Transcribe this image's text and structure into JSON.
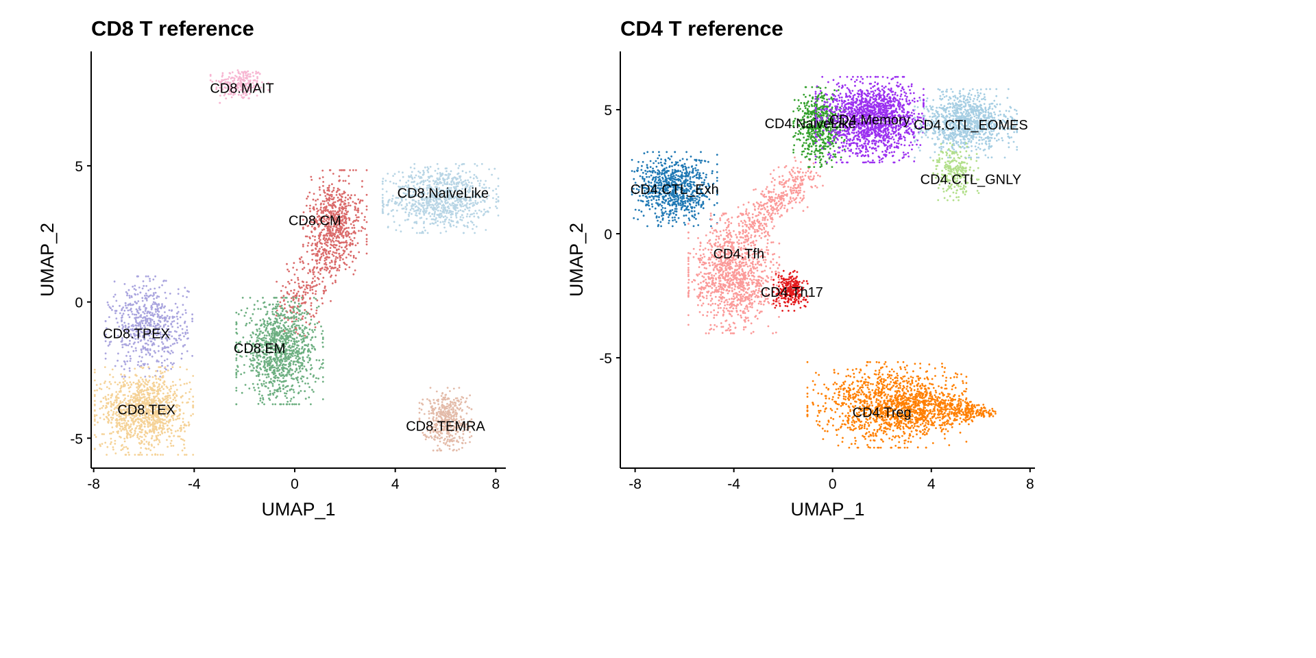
{
  "chart_data": [
    {
      "type": "scatter",
      "title": "CD8 T reference",
      "xlabel": "UMAP_1",
      "ylabel": "UMAP_2",
      "xlim": [
        -8.1,
        8.4
      ],
      "ylim": [
        -6.1,
        9.2
      ],
      "xticks": [
        -8,
        -4,
        0,
        4,
        8
      ],
      "yticks": [
        -5,
        0,
        5
      ],
      "grid": false,
      "legend": "none",
      "clusters": [
        {
          "label": "CD8.MAIT",
          "color": "#F7B6D2",
          "center": [
            -2.2,
            8.0
          ],
          "spread": [
            0.5,
            0.3
          ],
          "n": 220,
          "label_at": [
            -2.1,
            7.85
          ]
        },
        {
          "label": "CD8.NaiveLike",
          "color": "#B8D5E5",
          "center": [
            5.8,
            3.8
          ],
          "spread": [
            1.0,
            0.55
          ],
          "n": 900,
          "label_at": [
            5.9,
            4.0
          ]
        },
        {
          "label": "CD8.CM",
          "color": "#DA6A6A",
          "center": [
            1.6,
            3.0
          ],
          "spread": [
            0.55,
            0.8
          ],
          "n": 900,
          "label_at": [
            0.8,
            3.0
          ]
        },
        {
          "label": "CD8.EM",
          "color": "#6DAF81",
          "center": [
            -0.6,
            -1.8
          ],
          "spread": [
            0.75,
            0.85
          ],
          "n": 1100,
          "label_at": [
            -1.4,
            -1.7
          ]
        },
        {
          "label": "CD8.TPEX",
          "color": "#A9A4DE",
          "center": [
            -5.8,
            -0.9
          ],
          "spread": [
            0.75,
            0.8
          ],
          "n": 600,
          "label_at": [
            -6.3,
            -1.15
          ]
        },
        {
          "label": "CD8.TEX",
          "color": "#F5D297",
          "center": [
            -6.0,
            -4.0
          ],
          "spread": [
            0.85,
            0.7
          ],
          "n": 1100,
          "label_at": [
            -5.9,
            -3.95
          ]
        },
        {
          "label": "CD8.TEMRA",
          "color": "#E3BBA9",
          "center": [
            6.0,
            -4.3
          ],
          "spread": [
            0.45,
            0.5
          ],
          "n": 450,
          "label_at": [
            6.0,
            -4.55
          ]
        }
      ]
    },
    {
      "type": "scatter",
      "title": "CD4 T reference",
      "xlabel": "UMAP_1",
      "ylabel": "UMAP_2",
      "xlim": [
        -8.6,
        8.2
      ],
      "ylim": [
        -9.45,
        7.35
      ],
      "xticks": [
        -8,
        -4,
        0,
        4,
        8
      ],
      "yticks": [
        -5,
        0,
        5
      ],
      "grid": false,
      "legend": "none",
      "clusters": [
        {
          "label": "CD4.CTL_Exh",
          "color": "#1F78B4",
          "center": [
            -6.4,
            1.8
          ],
          "spread": [
            0.75,
            0.65
          ],
          "n": 800,
          "label_at": [
            -6.4,
            1.8
          ]
        },
        {
          "label": "CD4.Tfh",
          "color": "#FB9A99",
          "center": [
            -4.0,
            -1.6
          ],
          "spread": [
            0.8,
            1.05
          ],
          "n": 1500,
          "label_at": [
            -3.8,
            -0.8
          ]
        },
        {
          "label": "CD4.Th17",
          "color": "#E31A1C",
          "center": [
            -1.7,
            -2.3
          ],
          "spread": [
            0.3,
            0.35
          ],
          "n": 250,
          "label_at": [
            -1.65,
            -2.35
          ]
        },
        {
          "label": "CD4.NaiveLike",
          "color": "#33A02C",
          "center": [
            -0.55,
            4.3
          ],
          "spread": [
            0.45,
            0.7
          ],
          "n": 600,
          "label_at": [
            -0.9,
            4.45
          ]
        },
        {
          "label": "CD4.Memory",
          "color": "#9B30F0",
          "center": [
            1.5,
            4.6
          ],
          "spread": [
            0.95,
            0.75
          ],
          "n": 1600,
          "label_at": [
            1.5,
            4.6
          ]
        },
        {
          "label": "CD4.CTL_EOMES",
          "color": "#A6CEE3",
          "center": [
            5.4,
            4.45
          ],
          "spread": [
            0.9,
            0.6
          ],
          "n": 1000,
          "label_at": [
            5.6,
            4.4
          ]
        },
        {
          "label": "CD4.CTL_GNLY",
          "color": "#B2DF8A",
          "center": [
            5.0,
            2.5
          ],
          "spread": [
            0.4,
            0.5
          ],
          "n": 250,
          "label_at": [
            5.6,
            2.2
          ]
        },
        {
          "label": "CD4.Treg",
          "color": "#FF7F00",
          "center": [
            2.2,
            -6.9
          ],
          "spread": [
            1.4,
            0.75
          ],
          "n": 1700,
          "label_at": [
            2.0,
            -7.2
          ]
        }
      ]
    }
  ]
}
